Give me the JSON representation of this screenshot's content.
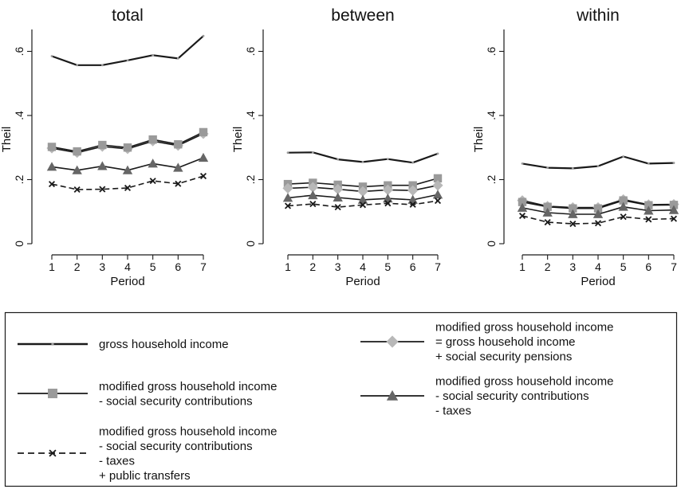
{
  "chart_data": [
    {
      "type": "line",
      "title": "total",
      "xlabel": "Period",
      "ylabel": "Theil",
      "x": [
        1,
        2,
        3,
        4,
        5,
        6,
        7
      ],
      "ylim": [
        0,
        0.65
      ],
      "yticks": [
        "0",
        ".2",
        ".4",
        ".6"
      ],
      "series": [
        {
          "key": "gross",
          "values": [
            0.585,
            0.557,
            0.557,
            0.572,
            0.588,
            0.578,
            0.648
          ]
        },
        {
          "key": "pensions",
          "values": [
            0.298,
            0.284,
            0.303,
            0.296,
            0.32,
            0.306,
            0.343
          ]
        },
        {
          "key": "ssc",
          "values": [
            0.302,
            0.288,
            0.308,
            0.3,
            0.325,
            0.31,
            0.348
          ]
        },
        {
          "key": "taxes",
          "values": [
            0.24,
            0.229,
            0.242,
            0.229,
            0.25,
            0.237,
            0.268
          ]
        },
        {
          "key": "transfers",
          "values": [
            0.186,
            0.169,
            0.17,
            0.174,
            0.196,
            0.187,
            0.211
          ]
        }
      ]
    },
    {
      "type": "line",
      "title": "between",
      "xlabel": "Period",
      "ylabel": "Theil",
      "x": [
        1,
        2,
        3,
        4,
        5,
        6,
        7
      ],
      "ylim": [
        0,
        0.65
      ],
      "yticks": [
        "0",
        ".2",
        ".4",
        ".6"
      ],
      "series": [
        {
          "key": "gross",
          "values": [
            0.284,
            0.285,
            0.263,
            0.255,
            0.264,
            0.253,
            0.281
          ]
        },
        {
          "key": "ssc",
          "values": [
            0.186,
            0.19,
            0.184,
            0.178,
            0.182,
            0.182,
            0.204
          ]
        },
        {
          "key": "pensions",
          "values": [
            0.173,
            0.176,
            0.17,
            0.163,
            0.168,
            0.166,
            0.182
          ]
        },
        {
          "key": "taxes",
          "values": [
            0.143,
            0.151,
            0.144,
            0.137,
            0.141,
            0.137,
            0.153
          ]
        },
        {
          "key": "transfers",
          "values": [
            0.118,
            0.124,
            0.114,
            0.121,
            0.126,
            0.122,
            0.134
          ]
        }
      ]
    },
    {
      "type": "line",
      "title": "within",
      "xlabel": "Period",
      "ylabel": "Theil",
      "x": [
        1,
        2,
        3,
        4,
        5,
        6,
        7
      ],
      "ylim": [
        0,
        0.65
      ],
      "yticks": [
        "0",
        ".2",
        ".4",
        ".6"
      ],
      "series": [
        {
          "key": "gross",
          "values": [
            0.25,
            0.237,
            0.235,
            0.242,
            0.272,
            0.25,
            0.252
          ]
        },
        {
          "key": "pensions",
          "values": [
            0.135,
            0.117,
            0.113,
            0.113,
            0.138,
            0.122,
            0.123
          ]
        },
        {
          "key": "ssc",
          "values": [
            0.13,
            0.115,
            0.11,
            0.11,
            0.135,
            0.12,
            0.121
          ]
        },
        {
          "key": "taxes",
          "values": [
            0.112,
            0.097,
            0.092,
            0.092,
            0.115,
            0.103,
            0.105
          ]
        },
        {
          "key": "transfers",
          "values": [
            0.087,
            0.067,
            0.062,
            0.064,
            0.084,
            0.076,
            0.078
          ]
        }
      ]
    }
  ],
  "styles": {
    "gross": {
      "marker": "none",
      "dash": "solid",
      "line_color": "#1a1a1a",
      "marker_color": "#9a9a9a"
    },
    "ssc": {
      "marker": "square",
      "dash": "solid",
      "line_color": "#1a1a1a",
      "marker_color": "#9a9a9a"
    },
    "pensions": {
      "marker": "diamond",
      "dash": "solid",
      "line_color": "#1a1a1a",
      "marker_color": "#b8b8b8"
    },
    "taxes": {
      "marker": "triangle",
      "dash": "solid",
      "line_color": "#1a1a1a",
      "marker_color": "#666666"
    },
    "transfers": {
      "marker": "x",
      "dash": "dashed",
      "line_color": "#1a1a1a",
      "marker_color": "#1a1a1a"
    }
  },
  "legend": {
    "placement": "bottom",
    "items": [
      {
        "key": "gross",
        "lines": [
          "gross household income"
        ]
      },
      {
        "key": "pensions",
        "lines": [
          "modified gross household income",
          "= gross household income",
          "+ social security pensions"
        ]
      },
      {
        "key": "ssc",
        "lines": [
          "modified gross household income",
          "- social security contributions"
        ]
      },
      {
        "key": "taxes",
        "lines": [
          "modified gross household income",
          "- social security contributions",
          "- taxes"
        ]
      },
      {
        "key": "transfers",
        "lines": [
          "modified gross household income",
          "- social security contributions",
          "- taxes",
          "+ public transfers"
        ]
      }
    ]
  }
}
